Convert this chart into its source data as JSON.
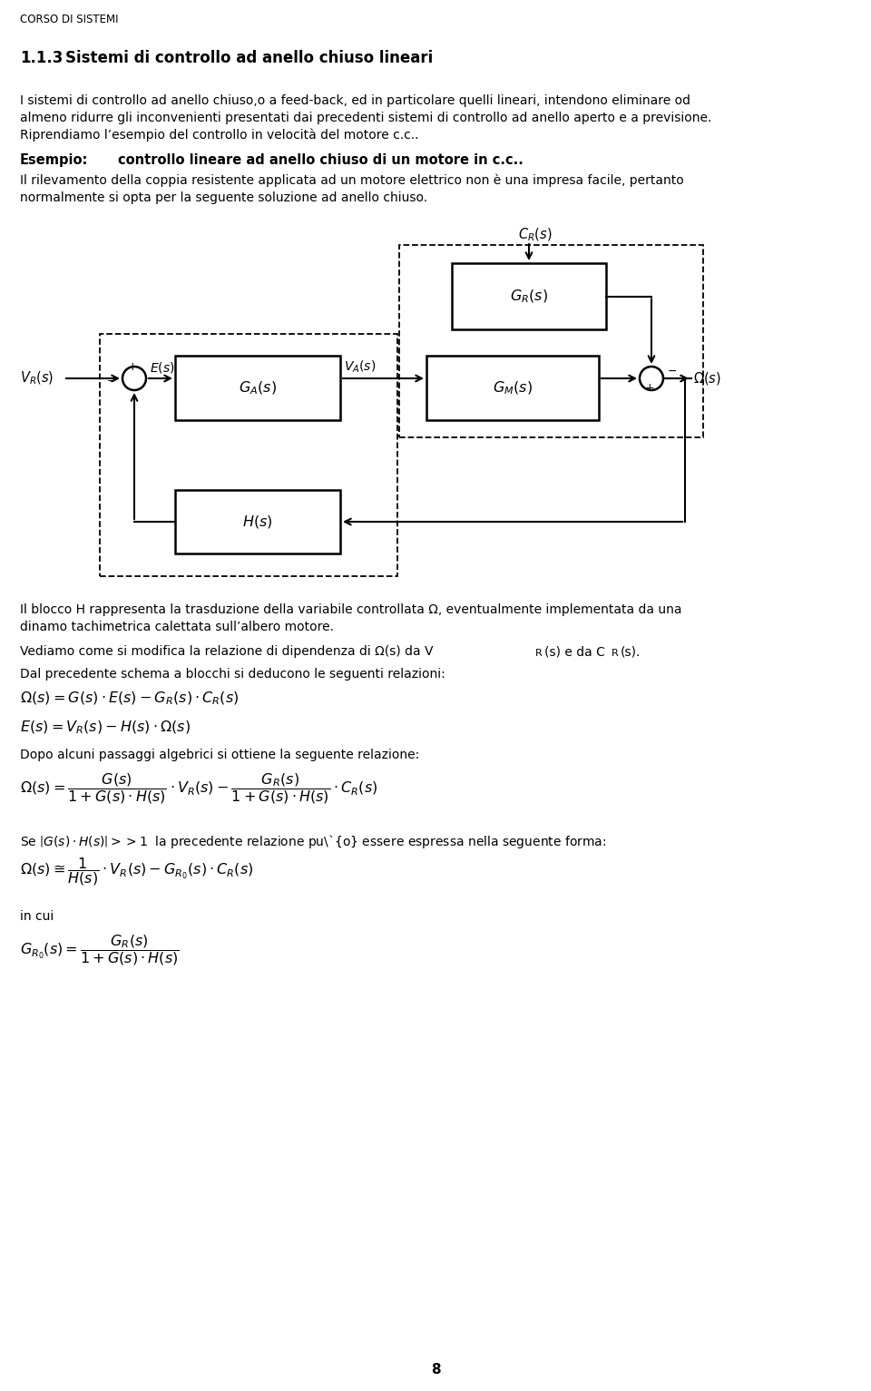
{
  "page_title": "CORSO DI SISTEMI",
  "section_title": "1.1.3",
  "section_title_rest": "Sistemi di controllo ad anello chiuso lineari",
  "body_text_1a": "I sistemi di controllo ad anello chiuso,o a feed-back, ed in particolare quelli lineari, intendono eliminare od",
  "body_text_1b": "almeno ridurre gli inconvenienti presentati dai precedenti sistemi di controllo ad anello aperto e a previsione.",
  "body_text_1c": "Riprendiamo l’esempio del controllo in velocità del motore c.c..",
  "esempio_label": "Esempio:",
  "esempio_text": "controllo lineare ad anello chiuso di un motore in c.c..",
  "body_text_2a": "Il rilevamento della coppia resistente applicata ad un motore elettrico non è una impresa facile, pertanto",
  "body_text_2b": "normalmente si opta per la seguente soluzione ad anello chiuso.",
  "block_H_1": "Il blocco H rappresenta la trasduzione della variabile controllata Ω, eventualmente implementata da una",
  "block_H_2": "dinamo tachimetrica calettata sull’albero motore.",
  "vediamo_text": "Vediamo come si modifica la relazione di dipendenza di Ω(s) da V",
  "vediamo_sub1": "R",
  "vediamo_mid": "(s) e da C",
  "vediamo_sub2": "R",
  "vediamo_end": "(s).",
  "dal_text": "Dal precedente schema a blocchi si deducono le seguenti relazioni:",
  "dopo_text": "Dopo alcuni passaggi algebrici si ottiene la seguente relazione:",
  "se_text_a": "Se ",
  "se_text_b": "|G(s)·H(s)| >> 1",
  "se_text_c": " la precedente relazione può essere espressa nella seguente forma:",
  "in_cui_text": "in cui",
  "page_number": "8",
  "background": "#ffffff"
}
